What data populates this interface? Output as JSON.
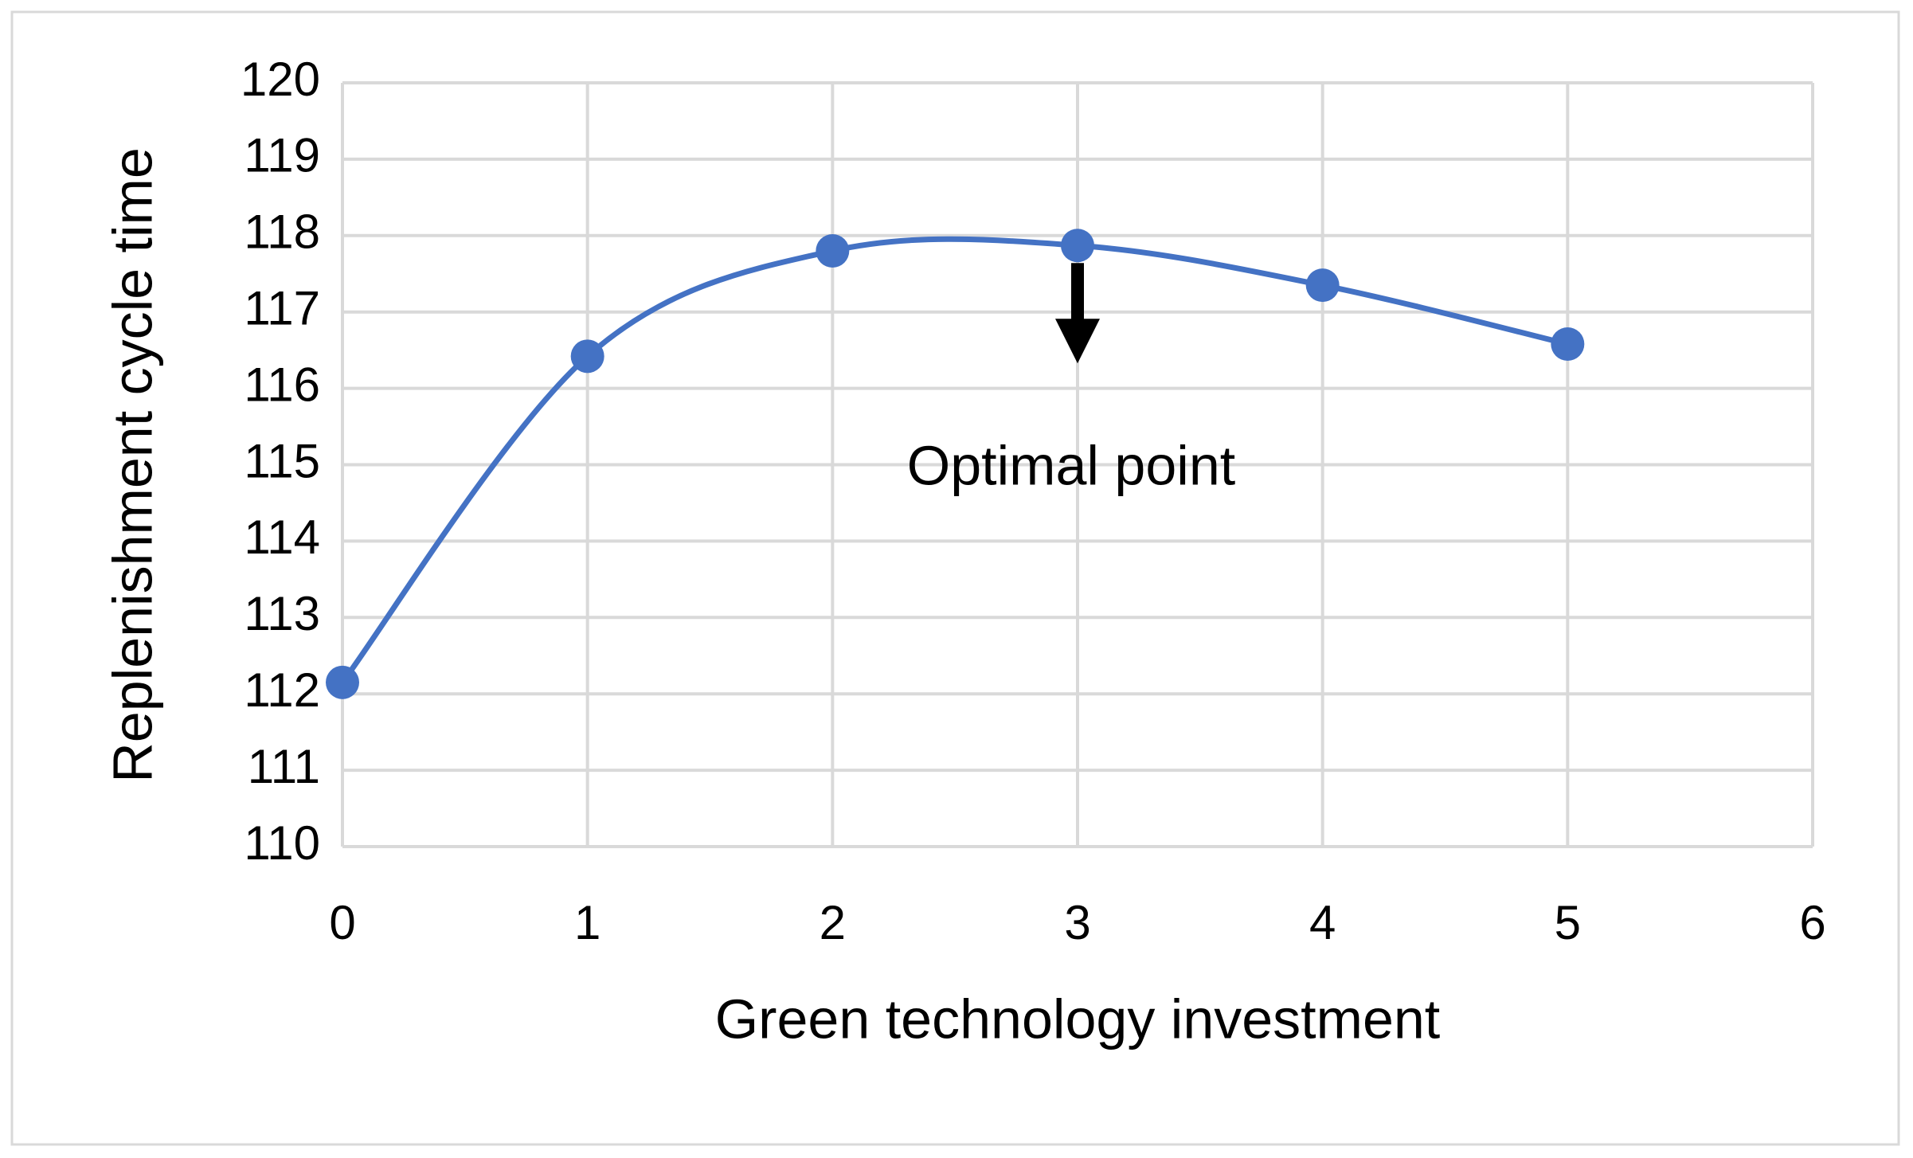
{
  "chart_data": {
    "type": "line",
    "annotation": "Optimal point",
    "x_label": "Green technology investment",
    "y_label": "Replenishment cycle time",
    "x": [
      0,
      1,
      2,
      3,
      4,
      5
    ],
    "values": [
      112.15,
      116.42,
      117.8,
      117.87,
      117.35,
      116.58
    ],
    "color": "#4472c4",
    "smooth": true,
    "markers": true,
    "xlim": [
      0,
      6
    ],
    "xticks": [
      0,
      1,
      2,
      3,
      4,
      5,
      6
    ],
    "ylim": [
      110,
      120
    ],
    "yticks": [
      110,
      111,
      112,
      113,
      114,
      115,
      116,
      117,
      118,
      119,
      120
    ],
    "grid": true
  }
}
